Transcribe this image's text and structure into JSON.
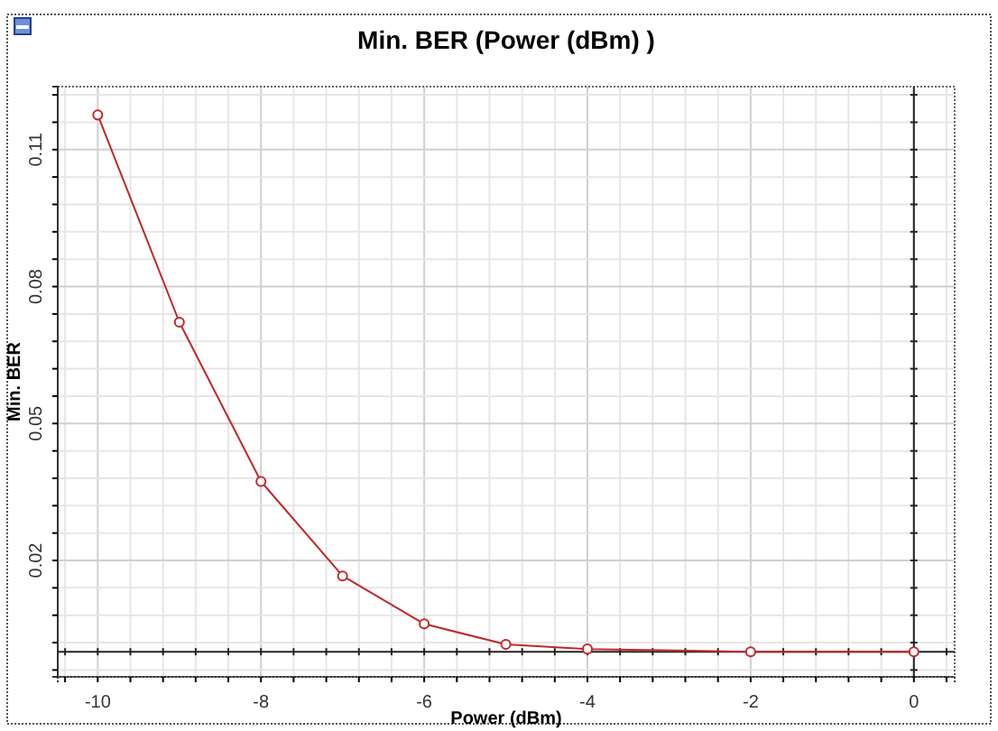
{
  "chart_data": {
    "type": "line",
    "title": "Min. BER (Power (dBm) )",
    "xlabel": "Power (dBm)",
    "ylabel": "Min. BER",
    "x": [
      -10,
      -9,
      -8,
      -7,
      -6,
      -5,
      -4,
      -2,
      0
    ],
    "series": [
      {
        "color": "#c0282d",
        "values": [
          0.1176,
          0.0722,
          0.0373,
          0.0166,
          0.0061,
          0.0016,
          0.0006,
          0,
          0
        ]
      }
    ],
    "marker": "circle",
    "grid": true,
    "xlim": [
      -10.49,
      0.5
    ],
    "ylim": [
      -0.0055,
      0.1238
    ],
    "xticks": [
      {
        "value": -10.4,
        "label": null
      },
      -10,
      {
        "value": -9.6,
        "label": null
      },
      {
        "value": -9.2,
        "label": null
      },
      {
        "value": -8.8,
        "label": null
      },
      {
        "value": -8.4,
        "label": null
      },
      -8,
      {
        "value": -7.6,
        "label": null
      },
      {
        "value": -7.2,
        "label": null
      },
      {
        "value": -6.8,
        "label": null
      },
      {
        "value": -6.4,
        "label": null
      },
      -6,
      {
        "value": -5.6,
        "label": null
      },
      {
        "value": -5.2,
        "label": null
      },
      {
        "value": -4.8,
        "label": null
      },
      {
        "value": -4.4,
        "label": null
      },
      -4,
      {
        "value": -3.6,
        "label": null
      },
      {
        "value": -3.2,
        "label": null
      },
      {
        "value": -2.8,
        "label": null
      },
      {
        "value": -2.4,
        "label": null
      },
      -2,
      {
        "value": -1.6,
        "label": null
      },
      {
        "value": -1.2,
        "label": null
      },
      {
        "value": -0.8,
        "label": null
      },
      {
        "value": -0.4,
        "label": null
      },
      0,
      {
        "value": 0.4,
        "label": null
      }
    ],
    "yticks": [
      {
        "value": -0.004,
        "label": null
      },
      {
        "value": 0.002,
        "label": null
      },
      {
        "value": 0.008,
        "label": null
      },
      {
        "value": 0.014,
        "label": null
      },
      0.02,
      {
        "value": 0.026,
        "label": null
      },
      {
        "value": 0.032,
        "label": null
      },
      {
        "value": 0.038,
        "label": null
      },
      {
        "value": 0.044,
        "label": null
      },
      0.05,
      {
        "value": 0.056,
        "label": null
      },
      {
        "value": 0.062,
        "label": null
      },
      {
        "value": 0.068,
        "label": null
      },
      {
        "value": 0.074,
        "label": null
      },
      0.08,
      {
        "value": 0.086,
        "label": null
      },
      {
        "value": 0.092,
        "label": null
      },
      {
        "value": 0.098,
        "label": null
      },
      {
        "value": 0.104,
        "label": null
      },
      0.11,
      {
        "value": 0.116,
        "label": null
      },
      {
        "value": 0.122,
        "label": null
      }
    ]
  }
}
